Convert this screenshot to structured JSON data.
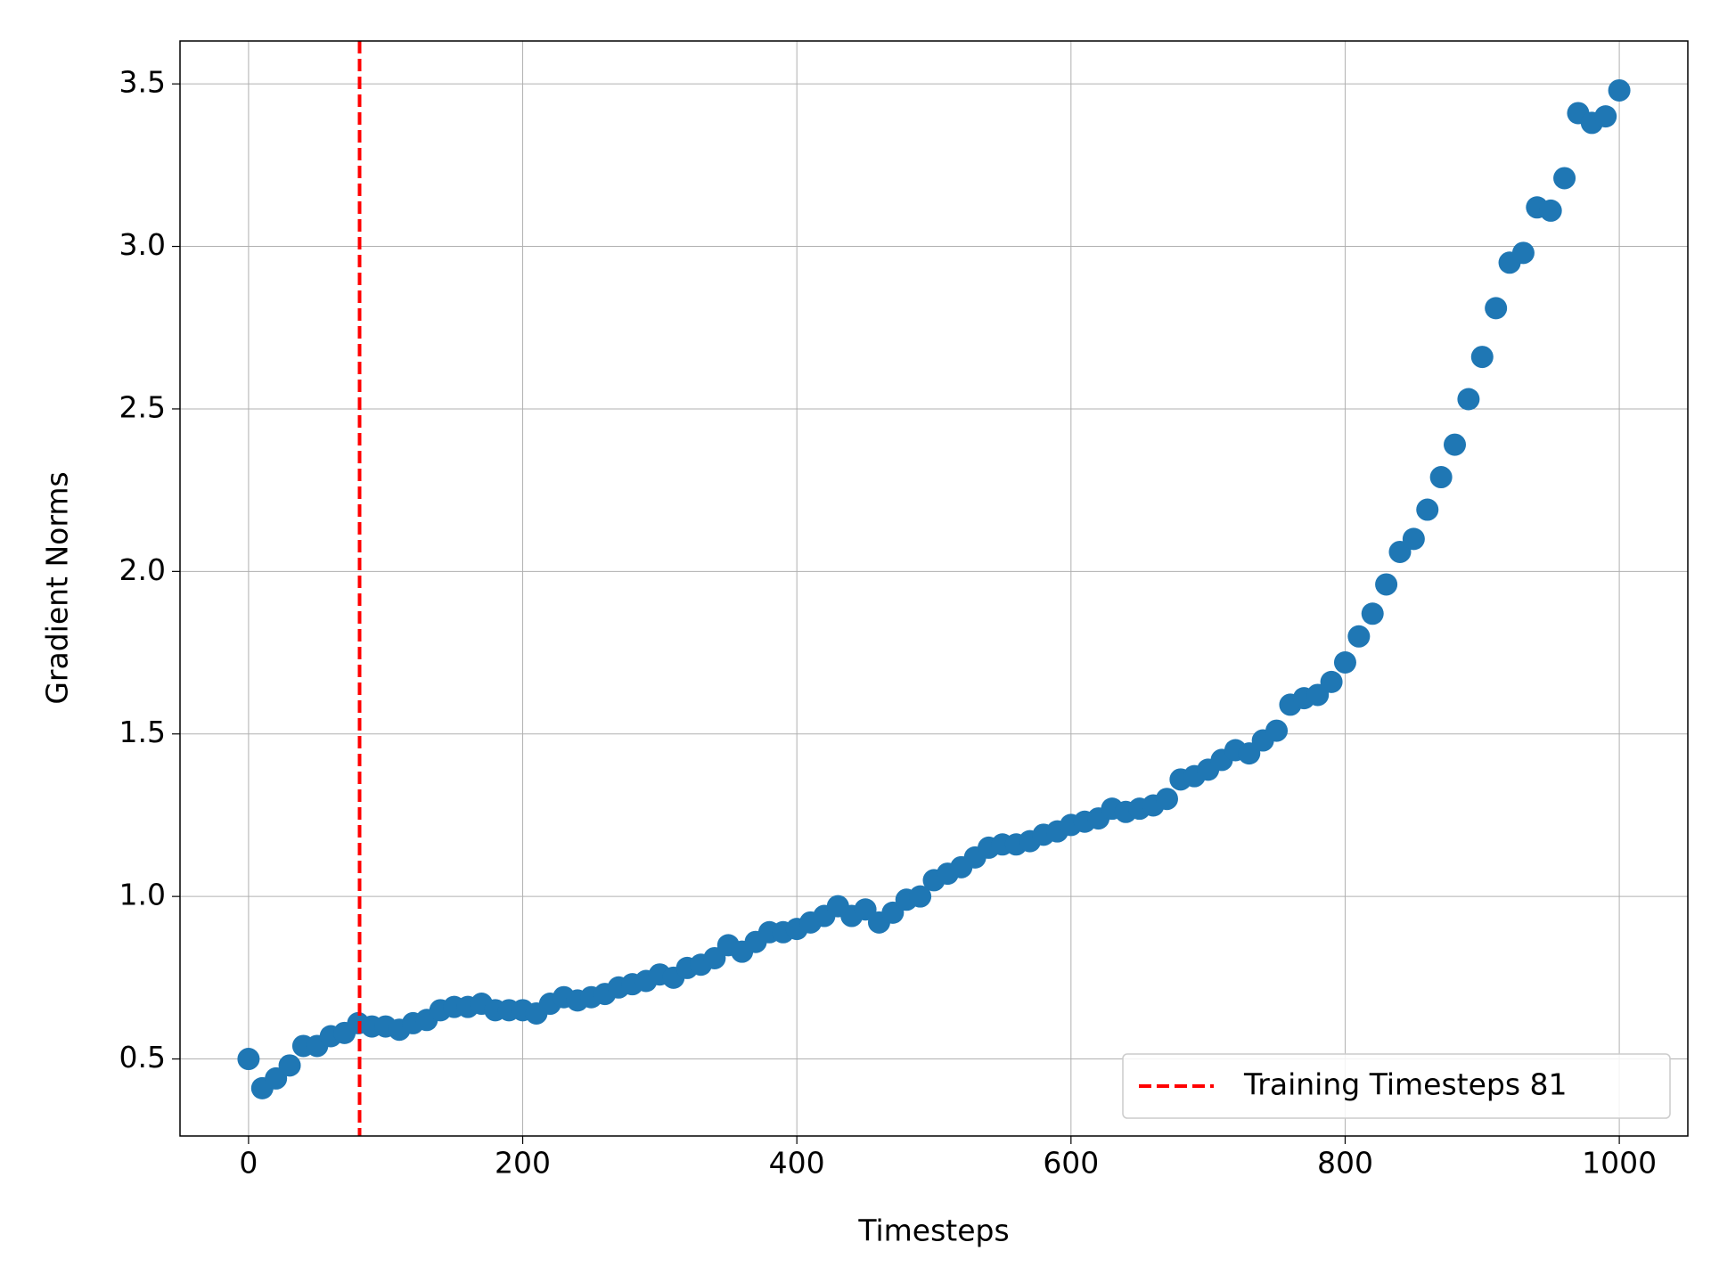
{
  "chart_data": {
    "type": "scatter",
    "x_label": "Timesteps",
    "y_label": "Gradient Norms",
    "x": [
      0,
      10,
      20,
      30,
      40,
      50,
      60,
      70,
      80,
      90,
      100,
      110,
      120,
      130,
      140,
      150,
      160,
      170,
      180,
      190,
      200,
      210,
      220,
      230,
      240,
      250,
      260,
      270,
      280,
      290,
      300,
      310,
      320,
      330,
      340,
      350,
      360,
      370,
      380,
      390,
      400,
      410,
      420,
      430,
      440,
      450,
      460,
      470,
      480,
      490,
      500,
      510,
      520,
      530,
      540,
      550,
      560,
      570,
      580,
      590,
      600,
      610,
      620,
      630,
      640,
      650,
      660,
      670,
      680,
      690,
      700,
      710,
      720,
      730,
      740,
      750,
      760,
      770,
      780,
      790,
      800,
      810,
      820,
      830,
      840,
      850,
      860,
      870,
      880,
      890,
      900,
      910,
      920,
      930,
      940,
      950,
      960,
      970,
      980,
      990,
      1000
    ],
    "series": [
      {
        "color": "#1f77b4",
        "values": [
          0.5,
          0.41,
          0.44,
          0.48,
          0.54,
          0.54,
          0.57,
          0.58,
          0.61,
          0.6,
          0.6,
          0.59,
          0.61,
          0.62,
          0.65,
          0.66,
          0.66,
          0.67,
          0.65,
          0.65,
          0.65,
          0.64,
          0.67,
          0.69,
          0.68,
          0.69,
          0.7,
          0.72,
          0.73,
          0.74,
          0.76,
          0.75,
          0.78,
          0.79,
          0.81,
          0.85,
          0.83,
          0.86,
          0.89,
          0.89,
          0.9,
          0.92,
          0.94,
          0.97,
          0.94,
          0.96,
          0.92,
          0.95,
          0.99,
          1.0,
          1.05,
          1.07,
          1.09,
          1.12,
          1.15,
          1.16,
          1.16,
          1.17,
          1.19,
          1.2,
          1.22,
          1.23,
          1.24,
          1.27,
          1.26,
          1.27,
          1.28,
          1.3,
          1.36,
          1.37,
          1.39,
          1.42,
          1.45,
          1.44,
          1.48,
          1.51,
          1.59,
          1.61,
          1.62,
          1.66,
          1.72,
          1.8,
          1.87,
          1.96,
          2.06,
          2.1,
          2.19,
          2.29,
          2.39,
          2.53,
          2.66,
          2.81,
          2.95,
          2.98,
          3.12,
          3.11,
          3.21,
          3.41,
          3.38,
          3.4,
          3.48
        ]
      }
    ],
    "vline": {
      "x": 81,
      "name": "Training Timesteps 81",
      "color": "#ff0000"
    },
    "xlim": [
      -50,
      1050
    ],
    "ylim": [
      0.263,
      3.632
    ],
    "xticks": [
      0,
      200,
      400,
      600,
      800,
      1000
    ],
    "yticks": [
      0.5,
      {
        "value": 1,
        "label": "1.0"
      },
      1.5,
      {
        "value": 2,
        "label": "2.0"
      },
      2.5,
      {
        "value": 3,
        "label": "3.0"
      },
      3.5
    ],
    "grid": true,
    "legend": "lower right"
  }
}
